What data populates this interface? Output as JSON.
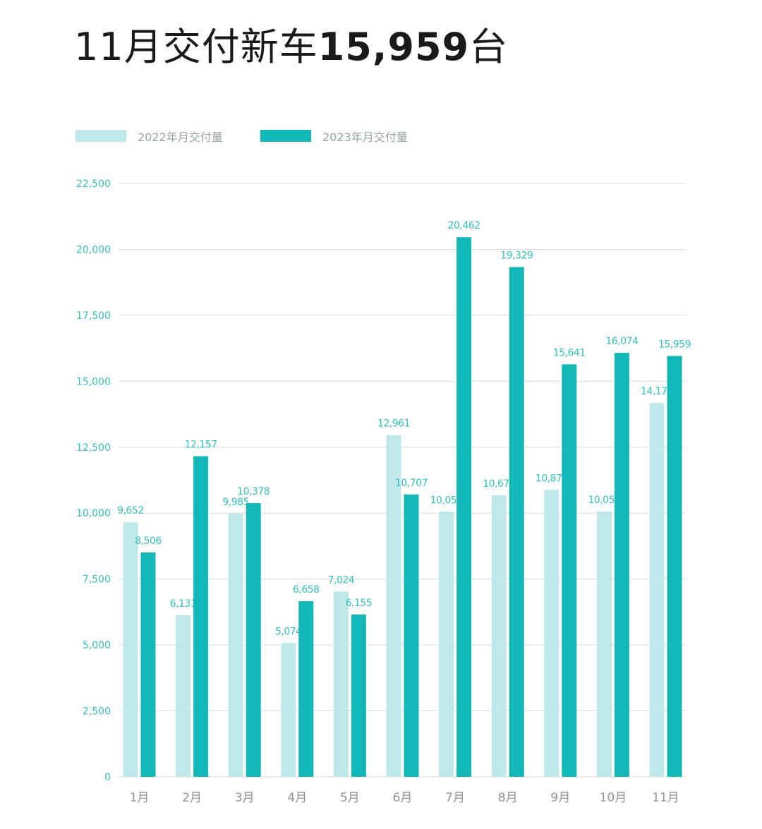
{
  "title": {
    "prefix": "11月交付新车",
    "number": "15,959",
    "suffix": "台"
  },
  "colors": {
    "series_2022": "#bfe8eb",
    "series_2023": "#12b7b8",
    "label": "#2fc3bf",
    "axis_text": "#2fc3bf",
    "grid": "#d9dddd",
    "month_text": "#8e9494"
  },
  "chart_data": {
    "type": "bar",
    "categories": [
      "1月",
      "2月",
      "3月",
      "4月",
      "5月",
      "6月",
      "7月",
      "8月",
      "9月",
      "10月",
      "11月"
    ],
    "series": [
      {
        "name": "2022年月交付量",
        "values": [
          9652,
          6131,
          9985,
          5074,
          7024,
          12961,
          10052,
          10677,
          10878,
          10059,
          14178
        ],
        "labels": [
          "9,652",
          "6,131",
          "9,985",
          "5,074",
          "7,024",
          "12,961",
          "10,052",
          "10,677",
          "10,878",
          "10,059",
          "14,178"
        ]
      },
      {
        "name": "2023年月交付量",
        "values": [
          8506,
          12157,
          10378,
          6658,
          6155,
          10707,
          20462,
          19329,
          15641,
          16074,
          15959
        ],
        "labels": [
          "8,506",
          "12,157",
          "10,378",
          "6,658",
          "6,155",
          "10,707",
          "20,462",
          "19,329",
          "15,641",
          "16,074",
          "15,959"
        ]
      }
    ],
    "yticks": [
      0,
      2500,
      5000,
      7500,
      10000,
      12500,
      15000,
      17500,
      20000,
      22500
    ],
    "ytick_labels": [
      "0",
      "2,500",
      "5,000",
      "7,500",
      "10,000",
      "12,500",
      "15,000",
      "17,500",
      "20,000",
      "22,500"
    ],
    "ylim": [
      0,
      22500
    ],
    "grid": true,
    "legend": "top-left"
  }
}
